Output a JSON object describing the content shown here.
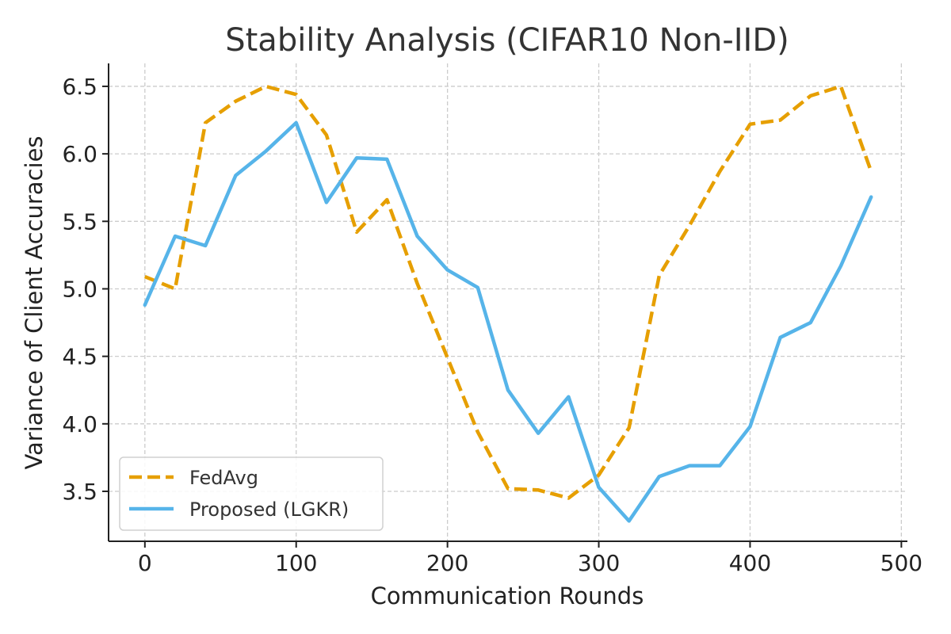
{
  "chart_data": {
    "type": "line",
    "title": "Stability Analysis (CIFAR10 Non-IID)",
    "xlabel": "Communication Rounds",
    "ylabel": "Variance of Client Accuracies",
    "xlim": [
      -24,
      504
    ],
    "ylim": [
      3.13,
      6.67
    ],
    "xticks": [
      0,
      100,
      200,
      300,
      400,
      500
    ],
    "yticks": [
      3.5,
      4.0,
      4.5,
      5.0,
      5.5,
      6.0,
      6.5
    ],
    "xtick_labels": [
      "0",
      "100",
      "200",
      "300",
      "400",
      "500"
    ],
    "ytick_labels": [
      "3.5",
      "4.0",
      "4.5",
      "5.0",
      "5.5",
      "6.0",
      "6.5"
    ],
    "grid": true,
    "legend_position": "lower-left",
    "x": [
      0,
      20,
      40,
      60,
      80,
      100,
      120,
      140,
      160,
      180,
      200,
      220,
      240,
      260,
      280,
      300,
      320,
      340,
      360,
      380,
      400,
      420,
      440,
      460,
      480
    ],
    "series": [
      {
        "name": "FedAvg",
        "color": "#E69F00",
        "style": "dashed",
        "values": [
          5.09,
          5.0,
          6.23,
          6.39,
          6.5,
          6.44,
          6.14,
          5.42,
          5.66,
          5.04,
          4.49,
          3.94,
          3.52,
          3.51,
          3.45,
          3.62,
          3.97,
          5.1,
          5.47,
          5.87,
          6.22,
          6.25,
          6.43,
          6.5,
          5.87
        ]
      },
      {
        "name": "Proposed (LGKR)",
        "color": "#56B4E9",
        "style": "solid",
        "values": [
          4.88,
          5.39,
          5.32,
          5.84,
          6.02,
          6.23,
          5.64,
          5.97,
          5.96,
          5.39,
          5.14,
          5.01,
          4.25,
          3.93,
          4.2,
          3.53,
          3.28,
          3.61,
          3.69,
          3.69,
          3.98,
          4.64,
          4.75,
          5.17,
          5.68
        ]
      }
    ]
  }
}
